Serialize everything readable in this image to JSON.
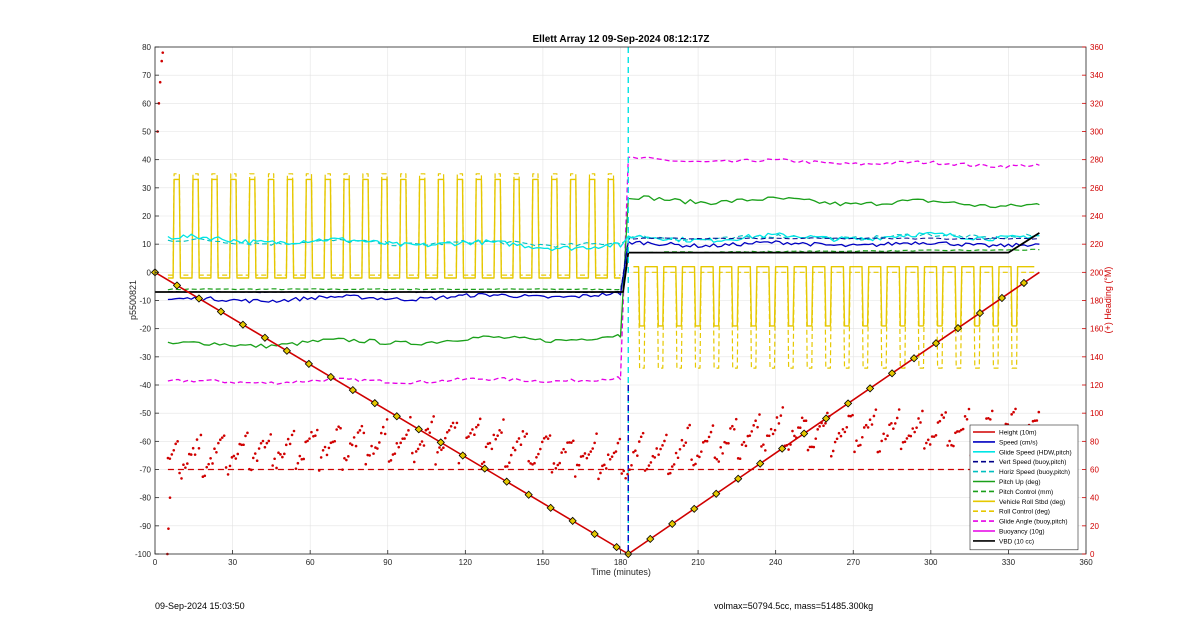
{
  "chart_data": {
    "type": "line",
    "title": "Ellett Array 12 09-Sep-2024 08:12:17Z",
    "xlabel": "Time (minutes)",
    "ylabel": "p5500821",
    "ylabel_right": "(+) Heading (°M)",
    "xlim": [
      0,
      360
    ],
    "ylim": [
      -100,
      80
    ],
    "ylim_right": [
      0,
      360
    ],
    "x_ticks": [
      0,
      30,
      60,
      90,
      120,
      150,
      180,
      210,
      240,
      270,
      300,
      330,
      360
    ],
    "y_ticks": [
      -100,
      -90,
      -80,
      -70,
      -60,
      -50,
      -40,
      -30,
      -20,
      -10,
      0,
      10,
      20,
      30,
      40,
      50,
      60,
      70,
      80
    ],
    "y_ticks_right": [
      0,
      20,
      40,
      60,
      80,
      100,
      120,
      140,
      160,
      180,
      200,
      220,
      240,
      260,
      280,
      300,
      320,
      340,
      360
    ],
    "grid": true,
    "legend_placement": "bottom-right",
    "dive_end_min": 183,
    "heading_ref_deg": 60,
    "series": [
      {
        "name": "Height (10m)",
        "color": "#d00000",
        "style": "solid-markers",
        "x": [
          0,
          183,
          342
        ],
        "y": [
          0,
          -100,
          0
        ]
      },
      {
        "name": "Speed (cm/s)",
        "color": "#0000c0",
        "style": "solid",
        "x": [
          5,
          180,
          183,
          342
        ],
        "y": [
          -10,
          -8,
          10,
          10
        ]
      },
      {
        "name": "Glide Speed (HDW,pitch)",
        "color": "#00e5e5",
        "style": "solid",
        "x": [
          5,
          180,
          183,
          342
        ],
        "y": [
          12,
          9,
          12,
          13
        ]
      },
      {
        "name": "Vert Speed (buoy,pitch)",
        "color": "#00008b",
        "style": "dashed",
        "x": [
          5,
          180,
          183,
          342
        ],
        "y": [
          -7,
          -7,
          12,
          12
        ]
      },
      {
        "name": "Horiz Speed (buoy,pitch)",
        "color": "#00c0c0",
        "style": "dashed",
        "x": [
          5,
          180,
          183,
          342
        ],
        "y": [
          11,
          10,
          12,
          13
        ]
      },
      {
        "name": "Pitch Up (deg)",
        "color": "#1aa01a",
        "style": "solid",
        "x": [
          5,
          180,
          183,
          342
        ],
        "y": [
          -26,
          -23,
          26,
          24
        ]
      },
      {
        "name": "Pitch Control (mm)",
        "color": "#1aa01a",
        "style": "dashed",
        "x": [
          5,
          180,
          183,
          342
        ],
        "y": [
          -6,
          -6,
          7,
          8
        ]
      },
      {
        "name": "Vehicle Roll Stbd (deg)",
        "color": "#e6c800",
        "style": "solid",
        "x": [
          5,
          180,
          183,
          342
        ],
        "y": [
          -2,
          -2,
          2,
          2
        ]
      },
      {
        "name": "Roll Control (deg)",
        "color": "#e6c800",
        "style": "dashed",
        "x": [
          5,
          180,
          183,
          342
        ],
        "y": [
          0,
          0,
          0,
          0
        ]
      },
      {
        "name": "Glide Angle (buoy,pitch)",
        "color": "#e600e6",
        "style": "dashed",
        "x": [
          5,
          180,
          183,
          342
        ],
        "y": [
          -39,
          -38,
          40,
          38
        ]
      },
      {
        "name": "Buoyancy (10g)",
        "color": "#e600e6",
        "style": "solid",
        "x": [],
        "y": []
      },
      {
        "name": "VBD (10 cc)",
        "color": "#000000",
        "style": "solid",
        "x": [
          0,
          181,
          183,
          330,
          342
        ],
        "y": [
          -7,
          -7,
          7,
          7,
          14
        ]
      },
      {
        "name": "Heading",
        "color": "#d00000",
        "style": "dots",
        "axis": "right",
        "x": [
          5,
          60,
          120,
          183,
          240,
          300,
          342
        ],
        "y": [
          60,
          70,
          75,
          60,
          80,
          80,
          80
        ]
      }
    ]
  },
  "footer": {
    "timestamp": "09-Sep-2024 15:03:50",
    "summary": "volmax=50794.5cc, mass=51485.300kg"
  }
}
